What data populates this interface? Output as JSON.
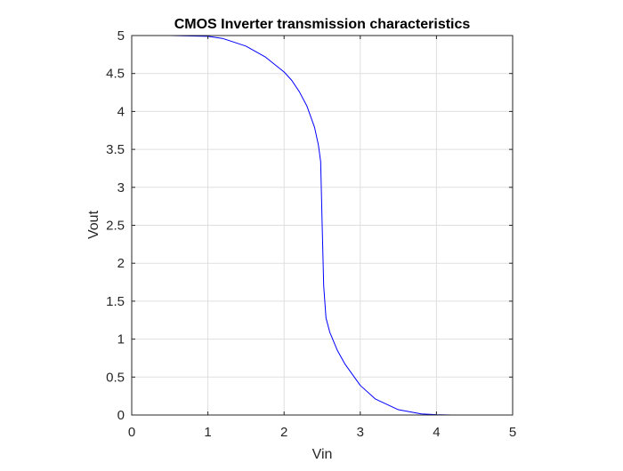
{
  "chart_data": {
    "type": "line",
    "title": "CMOS Inverter transmission characteristics",
    "xlabel": "Vin",
    "ylabel": "Vout",
    "xlim": [
      0,
      5
    ],
    "ylim": [
      0,
      5
    ],
    "xticks": [
      0,
      1,
      2,
      3,
      4,
      5
    ],
    "xtick_labels": [
      "0",
      "1",
      "2",
      "3",
      "4",
      "5"
    ],
    "yticks": [
      0,
      0.5,
      1,
      1.5,
      2,
      2.5,
      3,
      3.5,
      4,
      4.5,
      5
    ],
    "ytick_labels": [
      "0",
      "0.5",
      "1",
      "1.5",
      "2",
      "2.5",
      "3",
      "3.5",
      "4",
      "4.5",
      "5"
    ],
    "grid": true,
    "line_color": "#0000ff",
    "series": [
      {
        "x": [
          0,
          0.5,
          1.0,
          1.2,
          1.5,
          1.75,
          2.0,
          2.1,
          2.2,
          2.3,
          2.4,
          2.45,
          2.48,
          2.5,
          2.52,
          2.55,
          2.6,
          2.7,
          2.8,
          3.0,
          3.2,
          3.5,
          3.8,
          4.0,
          4.2,
          4.5,
          5.0
        ],
        "y": [
          5.0,
          5.0,
          4.99,
          4.96,
          4.86,
          4.72,
          4.52,
          4.41,
          4.26,
          4.07,
          3.79,
          3.56,
          3.34,
          2.5,
          1.7,
          1.28,
          1.09,
          0.85,
          0.67,
          0.39,
          0.21,
          0.07,
          0.015,
          0.005,
          0.0,
          0.0,
          0.0
        ]
      }
    ]
  }
}
